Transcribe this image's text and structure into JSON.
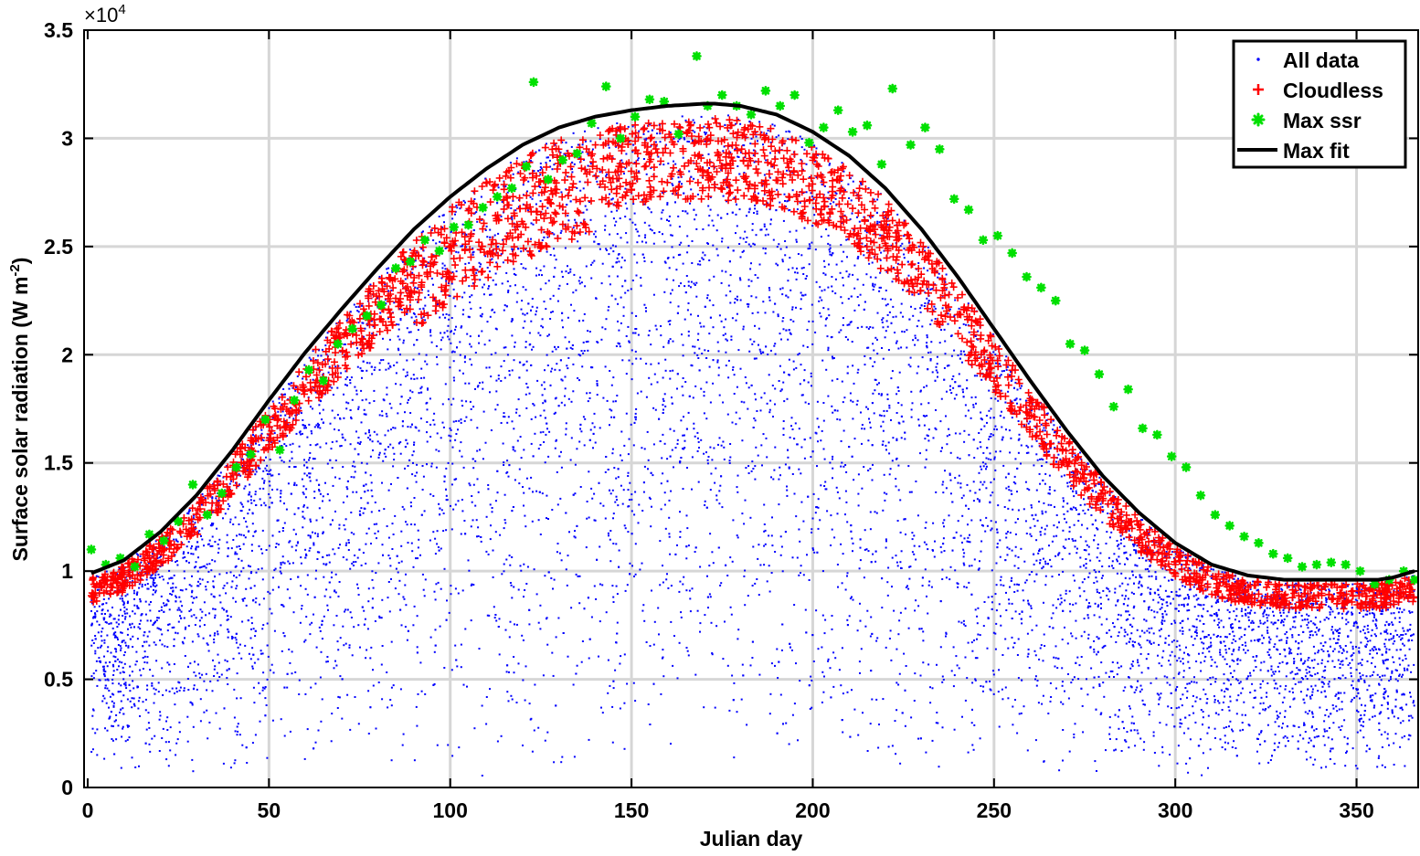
{
  "chart_data": {
    "type": "scatter",
    "xlabel": "Julian day",
    "ylabel_main": "Surface  solar  radiation (W  m",
    "ylabel_sup": "-2",
    "ylabel_close": ")",
    "exponent_prefix": "×10",
    "exponent_power": "4",
    "xlim": [
      -1,
      367
    ],
    "ylim": [
      0,
      35000
    ],
    "xticks": [
      0,
      50,
      100,
      150,
      200,
      250,
      300,
      350
    ],
    "yticks": [
      0,
      5000,
      10000,
      15000,
      20000,
      25000,
      30000,
      35000
    ],
    "xtick_labels": [
      "0",
      "50",
      "100",
      "150",
      "200",
      "250",
      "300",
      "350"
    ],
    "ytick_labels": [
      "0",
      "0.5",
      "1",
      "1.5",
      "2",
      "2.5",
      "3",
      "3.5"
    ],
    "grid": true,
    "legend_position": "top-right",
    "legend": [
      "All data",
      "Cloudless",
      "Max ssr",
      "Max fit"
    ],
    "series": [
      {
        "name": "All data",
        "marker": "dot",
        "color": "#0000ff",
        "description_values": "approx. 10,000 points, days 1-366, values from ~500 up to the Max fit curve"
      },
      {
        "name": "Cloudless",
        "marker": "plus",
        "color": "#ff0000",
        "description_values": "points clustered just below the Max fit curve"
      },
      {
        "name": "Max ssr",
        "marker": "asterisk",
        "color": "#00e000",
        "x": [
          1,
          5,
          9,
          13,
          17,
          21,
          25,
          29,
          33,
          37,
          41,
          45,
          49,
          53,
          57,
          61,
          65,
          69,
          73,
          77,
          81,
          85,
          89,
          93,
          97,
          101,
          105,
          109,
          113,
          117,
          121,
          123,
          127,
          131,
          135,
          139,
          143,
          147,
          151,
          155,
          159,
          163,
          168,
          171,
          175,
          179,
          183,
          187,
          191,
          195,
          199,
          203,
          207,
          211,
          215,
          219,
          222,
          227,
          231,
          235,
          239,
          243,
          247,
          251,
          255,
          259,
          263,
          267,
          271,
          275,
          279,
          283,
          287,
          291,
          295,
          299,
          303,
          307,
          311,
          315,
          319,
          323,
          327,
          331,
          335,
          339,
          343,
          347,
          351,
          355,
          359,
          363,
          366
        ],
        "y": [
          11000,
          10300,
          10600,
          10200,
          11700,
          11400,
          12300,
          14000,
          12600,
          13600,
          14800,
          15400,
          17000,
          15600,
          17900,
          19300,
          18800,
          20500,
          21200,
          21800,
          22300,
          24000,
          24300,
          25300,
          24800,
          25900,
          26000,
          26800,
          27300,
          27700,
          28700,
          32600,
          28100,
          29000,
          29300,
          30700,
          32400,
          30000,
          31000,
          31800,
          31700,
          30200,
          33800,
          31500,
          32000,
          31500,
          31100,
          32200,
          31500,
          32000,
          29800,
          30500,
          31300,
          30300,
          30600,
          28800,
          32300,
          29700,
          30500,
          29500,
          27200,
          26700,
          25300,
          25500,
          24700,
          23600,
          23100,
          22500,
          20500,
          20200,
          19100,
          17600,
          18400,
          16600,
          16300,
          15300,
          14800,
          13500,
          12600,
          12100,
          11600,
          11300,
          10800,
          10600,
          10200,
          10300,
          10400,
          10300,
          10000,
          9400,
          9600,
          10000,
          9600
        ]
      },
      {
        "name": "Max fit",
        "marker": "line",
        "color": "#000000",
        "x": [
          1,
          10,
          20,
          30,
          40,
          50,
          60,
          70,
          80,
          90,
          100,
          110,
          120,
          130,
          140,
          150,
          160,
          170,
          173,
          180,
          190,
          200,
          210,
          220,
          230,
          240,
          250,
          260,
          270,
          280,
          290,
          300,
          310,
          320,
          330,
          340,
          350,
          356,
          360,
          366
        ],
        "y": [
          9900,
          10500,
          11800,
          13500,
          15600,
          17900,
          20100,
          22100,
          24000,
          25800,
          27300,
          28600,
          29700,
          30500,
          31000,
          31300,
          31500,
          31600,
          31600,
          31500,
          31100,
          30300,
          29200,
          27700,
          25800,
          23600,
          21200,
          18800,
          16500,
          14400,
          12700,
          11300,
          10300,
          9800,
          9600,
          9600,
          9600,
          9600,
          9700,
          10000
        ]
      }
    ]
  },
  "colors": {
    "all_data": "#0000ff",
    "cloudless": "#ff0000",
    "max_ssr": "#00e000",
    "max_fit": "#000000",
    "grid": "#d6d6d6"
  }
}
